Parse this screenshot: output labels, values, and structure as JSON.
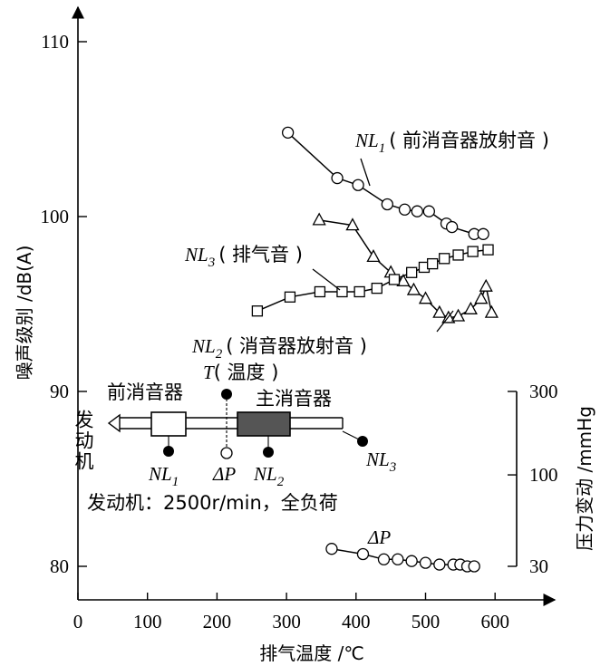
{
  "chart_data": {
    "type": "scatter",
    "xlabel": "排气温度 /℃",
    "ylabel": "噪声级别 /dB(A)",
    "y2label": "压力变动 /mmHg",
    "xlim": [
      0,
      650
    ],
    "ylim": [
      78,
      111
    ],
    "x_ticks": [
      "0",
      "100",
      "200",
      "300",
      "400",
      "500",
      "600"
    ],
    "y_ticks": [
      "80",
      "90",
      "100",
      "110"
    ],
    "y2_ticks": [
      "30",
      "100",
      "300"
    ],
    "grid": false,
    "series": [
      {
        "name": "NL1",
        "label_main": "NL",
        "label_sub": "1",
        "label_note": "( 前消音器放射音 )",
        "marker": "circle",
        "x": [
          302,
          373,
          403,
          445,
          470,
          488,
          505,
          530,
          538,
          570,
          583
        ],
        "y": [
          104.8,
          102.2,
          101.8,
          100.7,
          100.4,
          100.3,
          100.3,
          99.6,
          99.4,
          99.0,
          99.0
        ]
      },
      {
        "name": "NL2",
        "label_main": "NL",
        "label_sub": "2",
        "label_note": "( 消音器放射音 )",
        "marker": "triangle",
        "x": [
          347,
          395,
          425,
          450,
          468,
          483,
          500,
          520,
          533,
          547,
          565,
          580,
          587,
          595
        ],
        "y": [
          99.8,
          99.5,
          97.7,
          96.8,
          96.3,
          95.8,
          95.3,
          94.5,
          94.2,
          94.3,
          94.7,
          95.3,
          96.0,
          94.5
        ]
      },
      {
        "name": "NL3",
        "label_main": "NL",
        "label_sub": "3",
        "label_note": "( 排气音 )",
        "marker": "square",
        "x": [
          258,
          305,
          348,
          380,
          405,
          430,
          455,
          480,
          498,
          510,
          527,
          547,
          568,
          590
        ],
        "y": [
          94.6,
          95.4,
          95.7,
          95.7,
          95.7,
          95.9,
          96.4,
          96.8,
          97.1,
          97.3,
          97.6,
          97.8,
          98.0,
          98.1
        ]
      },
      {
        "name": "ΔP",
        "label_main": "ΔP",
        "marker": "circle",
        "x": [
          365,
          410,
          440,
          460,
          480,
          500,
          520,
          540,
          550,
          560,
          570
        ],
        "y": [
          81.0,
          80.7,
          80.4,
          80.4,
          80.3,
          80.2,
          80.1,
          80.1,
          80.1,
          80.0,
          80.0
        ]
      }
    ],
    "diagram": {
      "engine": "发动机",
      "front_muffler": "前消音器",
      "main_muffler": "主消音器",
      "temp_label": "T",
      "temp_note": "( 温度 )",
      "dp_label": "ΔP",
      "nl1": "NL",
      "nl1_sub": "1",
      "nl2": "NL",
      "nl2_sub": "2",
      "nl3": "NL",
      "nl3_sub": "3"
    },
    "condition": "发动机：2500r/min，全负荷"
  }
}
